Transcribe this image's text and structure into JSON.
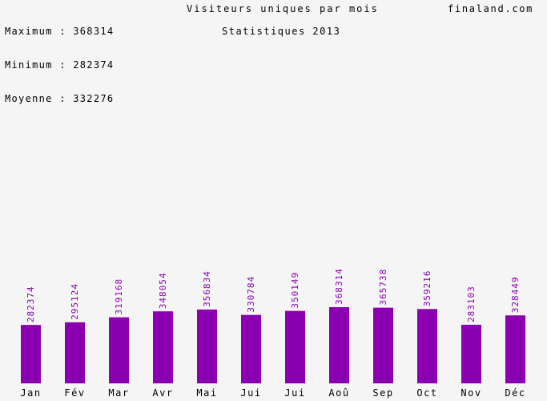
{
  "header": {
    "max_label": "Maximum : 368314",
    "min_label": "Minimum : 282374",
    "avg_label": "Moyenne : 332276",
    "site": "finaland.com"
  },
  "chart_data": {
    "type": "bar",
    "title": "Visiteurs uniques par mois",
    "subtitle": "Statistiques 2013",
    "categories": [
      "Jan",
      "Fév",
      "Mar",
      "Avr",
      "Mai",
      "Jui",
      "Jui",
      "Aoû",
      "Sep",
      "Oct",
      "Nov",
      "Déc"
    ],
    "values": [
      282374,
      295124,
      319168,
      348054,
      356834,
      330784,
      350149,
      368314,
      365738,
      359216,
      283103,
      328449
    ],
    "value_labels": [
      "282374",
      "295124",
      "319168",
      "348054",
      "356834",
      "330784",
      "350149",
      "368314",
      "365738",
      "359216",
      "283103",
      "328449"
    ],
    "bar_color": "#8a00b0",
    "label_color": "#8a00b0",
    "background": "#f5f5f5",
    "grid": false,
    "legend": "none"
  }
}
